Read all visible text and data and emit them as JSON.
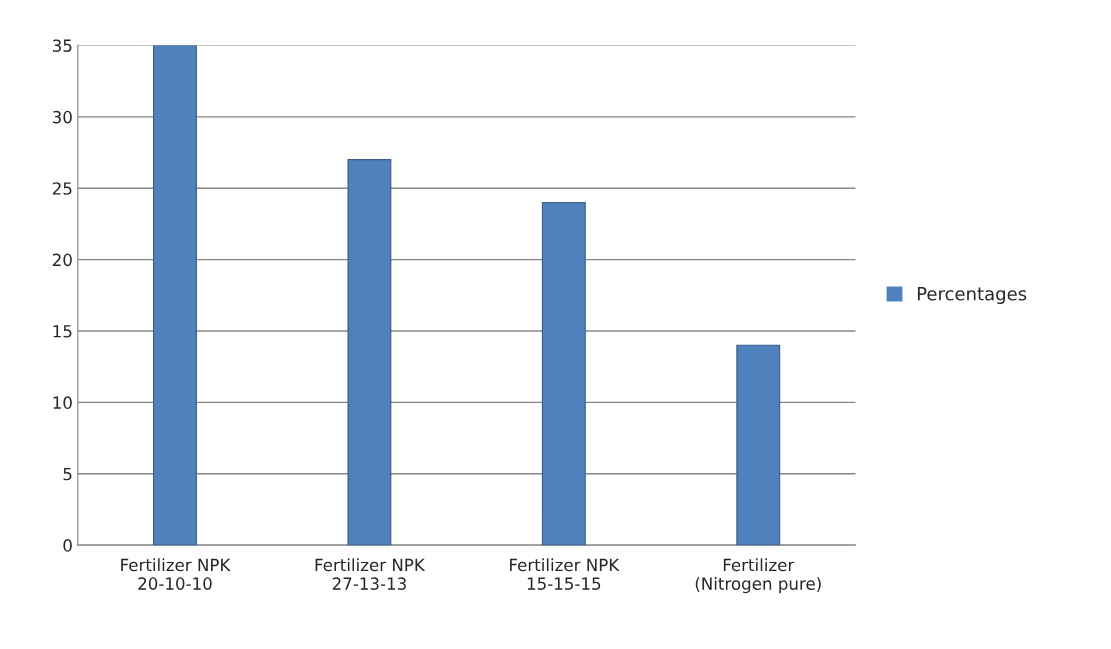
{
  "chart_data": {
    "type": "bar",
    "categories": [
      "Fertilizer NPK\n20-10-10",
      "Fertilizer NPK\n27-13-13",
      "Fertilizer NPK\n15-15-15",
      "Fertilizer\n(Nitrogen pure)"
    ],
    "series": [
      {
        "name": "Percentages",
        "color": "#4f81bd",
        "values": [
          35,
          27,
          24,
          14
        ]
      }
    ],
    "ylim": [
      0,
      35
    ],
    "yticks": [
      0,
      5,
      10,
      15,
      20,
      25,
      30,
      35
    ],
    "grid": "y",
    "legend": "right"
  }
}
